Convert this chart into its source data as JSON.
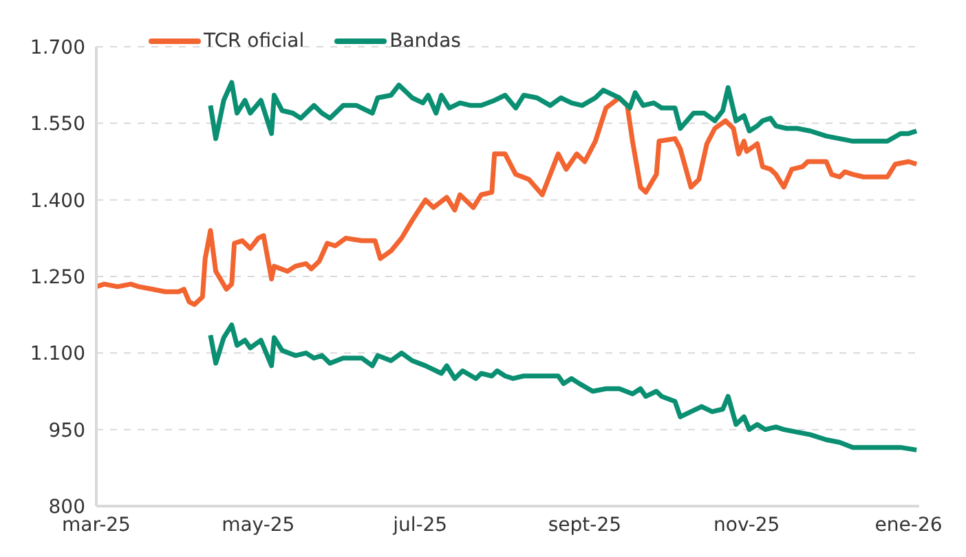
{
  "chart_data": {
    "type": "line",
    "xlim": [
      "2025-03-01",
      "2026-01-05"
    ],
    "xticks": [
      {
        "value": "2025-03-01",
        "label": "mar-25"
      },
      {
        "value": "2025-05-01",
        "label": "may-25"
      },
      {
        "value": "2025-07-01",
        "label": "jul-25"
      },
      {
        "value": "2025-09-01",
        "label": "sept-25"
      },
      {
        "value": "2025-11-01",
        "label": "nov-25"
      },
      {
        "value": "2026-01-01",
        "label": "ene-26"
      }
    ],
    "ylim": [
      800,
      1700
    ],
    "yticks": [
      800,
      950,
      {
        "value": 1100,
        "label": "1.100"
      },
      {
        "value": 1250,
        "label": "1.250"
      },
      {
        "value": 1400,
        "label": "1.400"
      },
      {
        "value": 1550,
        "label": "1.550"
      },
      {
        "value": 1700,
        "label": "1.700"
      }
    ],
    "grid": "y",
    "legend": "top left",
    "marker": "none",
    "line_style": "solid",
    "series": [
      {
        "name": "TCR oficial",
        "color": "#f26430",
        "x": [
          "2025-03-01",
          "2025-03-04",
          "2025-03-09",
          "2025-03-14",
          "2025-03-17",
          "2025-03-22",
          "2025-03-27",
          "2025-04-01",
          "2025-04-03",
          "2025-04-05",
          "2025-04-07",
          "2025-04-10",
          "2025-04-11",
          "2025-04-13",
          "2025-04-15",
          "2025-04-19",
          "2025-04-21",
          "2025-04-22",
          "2025-04-25",
          "2025-04-28",
          "2025-05-01",
          "2025-05-03",
          "2025-05-06",
          "2025-05-07",
          "2025-05-12",
          "2025-05-15",
          "2025-05-19",
          "2025-05-21",
          "2025-05-24",
          "2025-05-27",
          "2025-05-30",
          "2025-06-03",
          "2025-06-09",
          "2025-06-14",
          "2025-06-16",
          "2025-06-20",
          "2025-06-24",
          "2025-06-28",
          "2025-07-03",
          "2025-07-06",
          "2025-07-11",
          "2025-07-14",
          "2025-07-16",
          "2025-07-21",
          "2025-07-24",
          "2025-07-28",
          "2025-07-29",
          "2025-08-02",
          "2025-08-06",
          "2025-08-11",
          "2025-08-16",
          "2025-08-22",
          "2025-08-25",
          "2025-08-29",
          "2025-09-01",
          "2025-09-05",
          "2025-09-09",
          "2025-09-14",
          "2025-09-17",
          "2025-09-19",
          "2025-09-22",
          "2025-09-24",
          "2025-09-28",
          "2025-09-29",
          "2025-10-05",
          "2025-10-07",
          "2025-10-11",
          "2025-10-14",
          "2025-10-17",
          "2025-10-20",
          "2025-10-24",
          "2025-10-27",
          "2025-10-29",
          "2025-10-31",
          "2025-11-01",
          "2025-11-05",
          "2025-11-07",
          "2025-11-10",
          "2025-11-12",
          "2025-11-15",
          "2025-11-18",
          "2025-11-22",
          "2025-11-24",
          "2025-11-28",
          "2025-12-01",
          "2025-12-03",
          "2025-12-06",
          "2025-12-08",
          "2025-12-11",
          "2025-12-15",
          "2025-12-19",
          "2025-12-24",
          "2025-12-27",
          "2026-01-01",
          "2026-01-04"
        ],
        "values": [
          1230,
          1235,
          1230,
          1235,
          1230,
          1225,
          1220,
          1220,
          1225,
          1200,
          1195,
          1210,
          1285,
          1340,
          1260,
          1225,
          1235,
          1315,
          1320,
          1305,
          1325,
          1330,
          1245,
          1270,
          1260,
          1270,
          1275,
          1265,
          1280,
          1315,
          1310,
          1325,
          1320,
          1320,
          1285,
          1300,
          1325,
          1360,
          1400,
          1385,
          1405,
          1380,
          1410,
          1385,
          1410,
          1415,
          1490,
          1490,
          1450,
          1440,
          1410,
          1490,
          1460,
          1490,
          1475,
          1515,
          1580,
          1600,
          1585,
          1515,
          1425,
          1415,
          1450,
          1515,
          1520,
          1500,
          1425,
          1440,
          1510,
          1540,
          1555,
          1540,
          1490,
          1515,
          1495,
          1510,
          1465,
          1460,
          1450,
          1425,
          1460,
          1465,
          1475,
          1475,
          1475,
          1450,
          1445,
          1455,
          1450,
          1445,
          1445,
          1445,
          1470,
          1475,
          1470
        ]
      },
      {
        "name": "Bandas",
        "color": "#0a8f72",
        "x": [
          "2025-04-13",
          "2025-04-15",
          "2025-04-18",
          "2025-04-21",
          "2025-04-23",
          "2025-04-26",
          "2025-04-28",
          "2025-05-02",
          "2025-05-06",
          "2025-05-07",
          "2025-05-10",
          "2025-05-14",
          "2025-05-17",
          "2025-05-22",
          "2025-05-25",
          "2025-05-28",
          "2025-06-02",
          "2025-06-07",
          "2025-06-13",
          "2025-06-15",
          "2025-06-20",
          "2025-06-23",
          "2025-06-26",
          "2025-06-28",
          "2025-07-02",
          "2025-07-04",
          "2025-07-07",
          "2025-07-09",
          "2025-07-12",
          "2025-07-16",
          "2025-07-20",
          "2025-07-24",
          "2025-07-29",
          "2025-08-02",
          "2025-08-06",
          "2025-08-09",
          "2025-08-14",
          "2025-08-19",
          "2025-08-23",
          "2025-08-27",
          "2025-08-31",
          "2025-09-05",
          "2025-09-08",
          "2025-09-14",
          "2025-09-18",
          "2025-09-20",
          "2025-09-23",
          "2025-09-27",
          "2025-09-30",
          "2025-10-05",
          "2025-10-07",
          "2025-10-12",
          "2025-10-16",
          "2025-10-20",
          "2025-10-23",
          "2025-10-25",
          "2025-10-28",
          "2025-10-31",
          "2025-11-02",
          "2025-11-05",
          "2025-11-07",
          "2025-11-10",
          "2025-11-12",
          "2025-11-16",
          "2025-11-20",
          "2025-11-25",
          "2025-12-01",
          "2025-12-06",
          "2025-12-11",
          "2025-12-19",
          "2025-12-24",
          "2025-12-29",
          "2026-01-01",
          "2026-01-04"
        ],
        "values": [
          1585,
          1520,
          1595,
          1630,
          1570,
          1595,
          1570,
          1595,
          1530,
          1605,
          1575,
          1570,
          1560,
          1585,
          1570,
          1560,
          1585,
          1585,
          1570,
          1600,
          1605,
          1625,
          1610,
          1600,
          1590,
          1605,
          1570,
          1605,
          1580,
          1590,
          1585,
          1585,
          1595,
          1605,
          1580,
          1605,
          1600,
          1585,
          1600,
          1590,
          1585,
          1600,
          1615,
          1600,
          1580,
          1610,
          1585,
          1590,
          1580,
          1580,
          1540,
          1570,
          1570,
          1555,
          1575,
          1620,
          1555,
          1565,
          1535,
          1545,
          1555,
          1560,
          1545,
          1540,
          1540,
          1535,
          1525,
          1520,
          1515,
          1515,
          1515,
          1530,
          1530,
          1535
        ]
      },
      {
        "color": "#0a8f72",
        "x": [
          "2025-04-13",
          "2025-04-15",
          "2025-04-18",
          "2025-04-21",
          "2025-04-23",
          "2025-04-26",
          "2025-04-28",
          "2025-05-02",
          "2025-05-06",
          "2025-05-07",
          "2025-05-10",
          "2025-05-15",
          "2025-05-19",
          "2025-05-22",
          "2025-05-25",
          "2025-05-28",
          "2025-06-02",
          "2025-06-09",
          "2025-06-13",
          "2025-06-15",
          "2025-06-20",
          "2025-06-24",
          "2025-06-28",
          "2025-07-03",
          "2025-07-09",
          "2025-07-11",
          "2025-07-14",
          "2025-07-17",
          "2025-07-22",
          "2025-07-24",
          "2025-07-28",
          "2025-07-30",
          "2025-08-02",
          "2025-08-05",
          "2025-08-09",
          "2025-08-16",
          "2025-08-22",
          "2025-08-24",
          "2025-08-27",
          "2025-08-30",
          "2025-09-04",
          "2025-09-09",
          "2025-09-14",
          "2025-09-19",
          "2025-09-22",
          "2025-09-24",
          "2025-09-28",
          "2025-09-30",
          "2025-10-05",
          "2025-10-07",
          "2025-10-11",
          "2025-10-15",
          "2025-10-19",
          "2025-10-23",
          "2025-10-25",
          "2025-10-28",
          "2025-10-31",
          "2025-11-02",
          "2025-11-05",
          "2025-11-08",
          "2025-11-12",
          "2025-11-15",
          "2025-11-20",
          "2025-11-25",
          "2025-12-01",
          "2025-12-06",
          "2025-12-11",
          "2025-12-16",
          "2025-12-24",
          "2025-12-29",
          "2026-01-04"
        ],
        "values": [
          1135,
          1080,
          1130,
          1155,
          1115,
          1125,
          1110,
          1125,
          1075,
          1130,
          1105,
          1095,
          1100,
          1090,
          1095,
          1080,
          1090,
          1090,
          1075,
          1095,
          1085,
          1100,
          1085,
          1075,
          1060,
          1075,
          1050,
          1065,
          1050,
          1060,
          1055,
          1065,
          1055,
          1050,
          1055,
          1055,
          1055,
          1040,
          1050,
          1040,
          1025,
          1030,
          1030,
          1020,
          1030,
          1015,
          1025,
          1015,
          1005,
          975,
          985,
          995,
          985,
          990,
          1015,
          960,
          975,
          950,
          960,
          950,
          955,
          950,
          945,
          940,
          930,
          925,
          915,
          915,
          915,
          915,
          910
        ]
      }
    ]
  }
}
